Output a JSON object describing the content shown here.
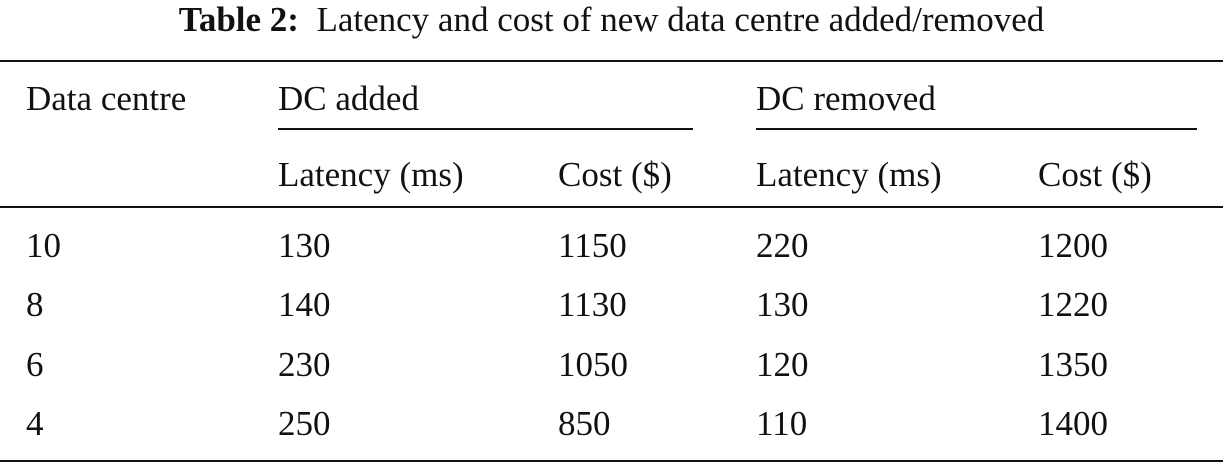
{
  "caption": {
    "label": "Table 2:",
    "text": "Latency and cost of new data centre added/removed"
  },
  "table": {
    "row_header": "Data centre",
    "groups": [
      "DC added",
      "DC removed"
    ],
    "subheaders": [
      "Latency (ms)",
      "Cost ($)",
      "Latency (ms)",
      "Cost ($)"
    ],
    "rows": [
      [
        "10",
        "130",
        "1150",
        "220",
        "1200"
      ],
      [
        "8",
        "140",
        "1130",
        "130",
        "1220"
      ],
      [
        "6",
        "230",
        "1050",
        "120",
        "1350"
      ],
      [
        "4",
        "250",
        "850",
        "110",
        "1400"
      ]
    ]
  }
}
